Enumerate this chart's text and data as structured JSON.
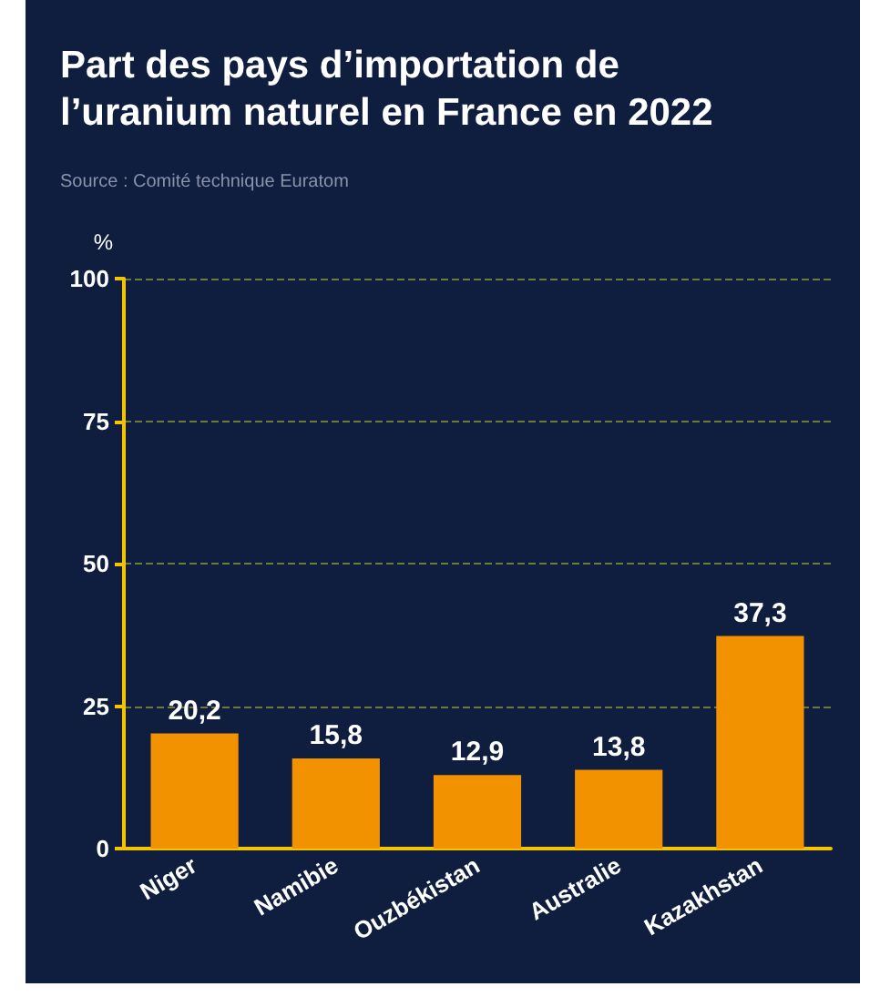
{
  "chart_data": {
    "type": "bar",
    "title": "Part des pays d’importation de l’uranium naturel en France en 2022",
    "subtitle": "Source : Comité technique Euratom",
    "ylabel": "%",
    "categories": [
      "Niger",
      "Namibie",
      "Ouzbékistan",
      "Australie",
      "Kazakhstan"
    ],
    "values": [
      20.2,
      15.8,
      12.9,
      13.8,
      37.3
    ],
    "value_labels": [
      "20,2",
      "15,8",
      "12,9",
      "13,8",
      "37,3"
    ],
    "color": "#f39200",
    "ylim": [
      0,
      100
    ],
    "yticks": [
      0,
      25,
      50,
      75,
      100
    ],
    "grid": "y",
    "line_style": "dashed"
  }
}
